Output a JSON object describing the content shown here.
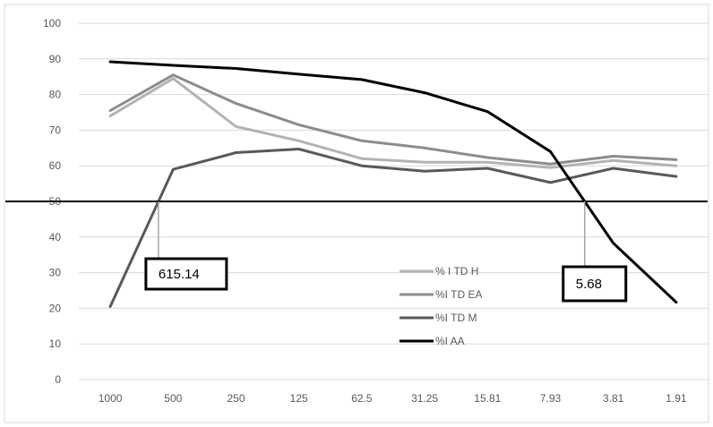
{
  "chart_data": {
    "type": "line",
    "title": "",
    "xlabel": "",
    "ylabel": "",
    "ylim": [
      0,
      100
    ],
    "yticks": [
      "0",
      "10",
      "20",
      "30",
      "40",
      "50",
      "60",
      "70",
      "80",
      "90",
      "100"
    ],
    "categories": [
      "1000",
      "500",
      "250",
      "125",
      "62.5",
      "31.25",
      "15.81",
      "7.93",
      "3.81",
      "1.91"
    ],
    "grid": true,
    "legend_position": "center-right",
    "reference_line": {
      "y": 50,
      "color": "#000000"
    },
    "series": [
      {
        "name": "% I TD H",
        "color": "#b3b3b3",
        "values": [
          74,
          84.5,
          71,
          67,
          62,
          61,
          61,
          59.5,
          61.5,
          60
        ]
      },
      {
        "name": "%I TD EA",
        "color": "#8c8c8c",
        "values": [
          75.5,
          85.5,
          77.5,
          71.5,
          67,
          65,
          62.3,
          60.5,
          62.7,
          61.7
        ]
      },
      {
        "name": "%I TD M",
        "color": "#595959",
        "values": [
          20.5,
          59,
          63.7,
          64.7,
          60,
          58.5,
          59.3,
          55.3,
          59.3,
          57
        ]
      },
      {
        "name": "%I AA",
        "color": "#000000",
        "values": [
          89.2,
          88.2,
          87.3,
          85.7,
          84.2,
          80.5,
          75.2,
          64,
          38.3,
          21.7
        ]
      }
    ],
    "annotations": [
      {
        "label": "615.14",
        "series": "%I TD M",
        "between": [
          "1000",
          "500"
        ],
        "y": 50
      },
      {
        "label": "5.68",
        "series": "%I AA",
        "between": [
          "7.93",
          "3.81"
        ],
        "y": 50
      }
    ]
  }
}
